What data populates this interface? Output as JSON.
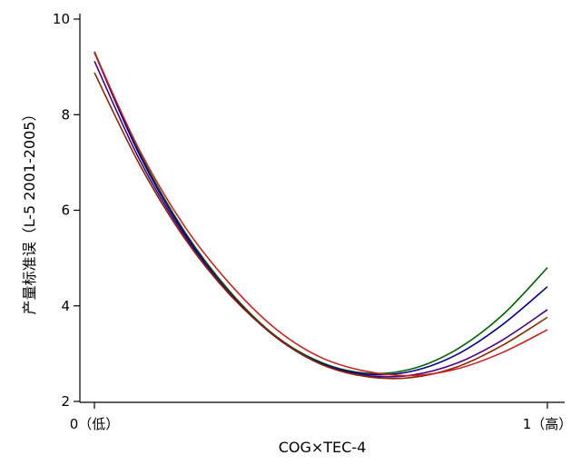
{
  "chart_data": {
    "type": "line",
    "xlabel": "COG×TEC-4",
    "ylabel": "产量标准误（L-5 2001-2005）",
    "xlim": [
      0,
      1
    ],
    "ylim": [
      2,
      10
    ],
    "grid": false,
    "x_ticks": [
      {
        "value": 0,
        "label": "0（低）"
      },
      {
        "value": 1,
        "label": "1（高）"
      }
    ],
    "y_ticks": [
      {
        "value": 2,
        "label": "2"
      },
      {
        "value": 4,
        "label": "4"
      },
      {
        "value": 6,
        "label": "6"
      },
      {
        "value": 8,
        "label": "8"
      },
      {
        "value": 10,
        "label": "10"
      }
    ],
    "x": [
      0,
      0.1,
      0.2,
      0.3,
      0.4,
      0.5,
      0.6,
      0.7,
      0.8,
      0.9,
      1.0
    ],
    "series": [
      {
        "color": "#006400",
        "values": [
          9.32,
          7.2,
          5.54,
          4.29,
          3.37,
          2.82,
          2.59,
          2.68,
          3.09,
          3.8,
          4.8
        ]
      },
      {
        "color": "#00008b",
        "values": [
          9.3,
          7.15,
          5.5,
          4.25,
          3.35,
          2.8,
          2.57,
          2.63,
          2.98,
          3.6,
          4.4
        ]
      },
      {
        "color": "#4b0082",
        "values": [
          9.12,
          7.05,
          5.45,
          4.25,
          3.35,
          2.78,
          2.54,
          2.55,
          2.8,
          3.28,
          3.92
        ]
      },
      {
        "color": "#8b2500",
        "values": [
          8.88,
          6.95,
          5.4,
          4.22,
          3.36,
          2.78,
          2.52,
          2.5,
          2.72,
          3.17,
          3.76
        ]
      },
      {
        "color": "#cc2222",
        "values": [
          9.3,
          7.25,
          5.65,
          4.45,
          3.52,
          2.92,
          2.63,
          2.54,
          2.68,
          3.02,
          3.5
        ]
      }
    ]
  }
}
